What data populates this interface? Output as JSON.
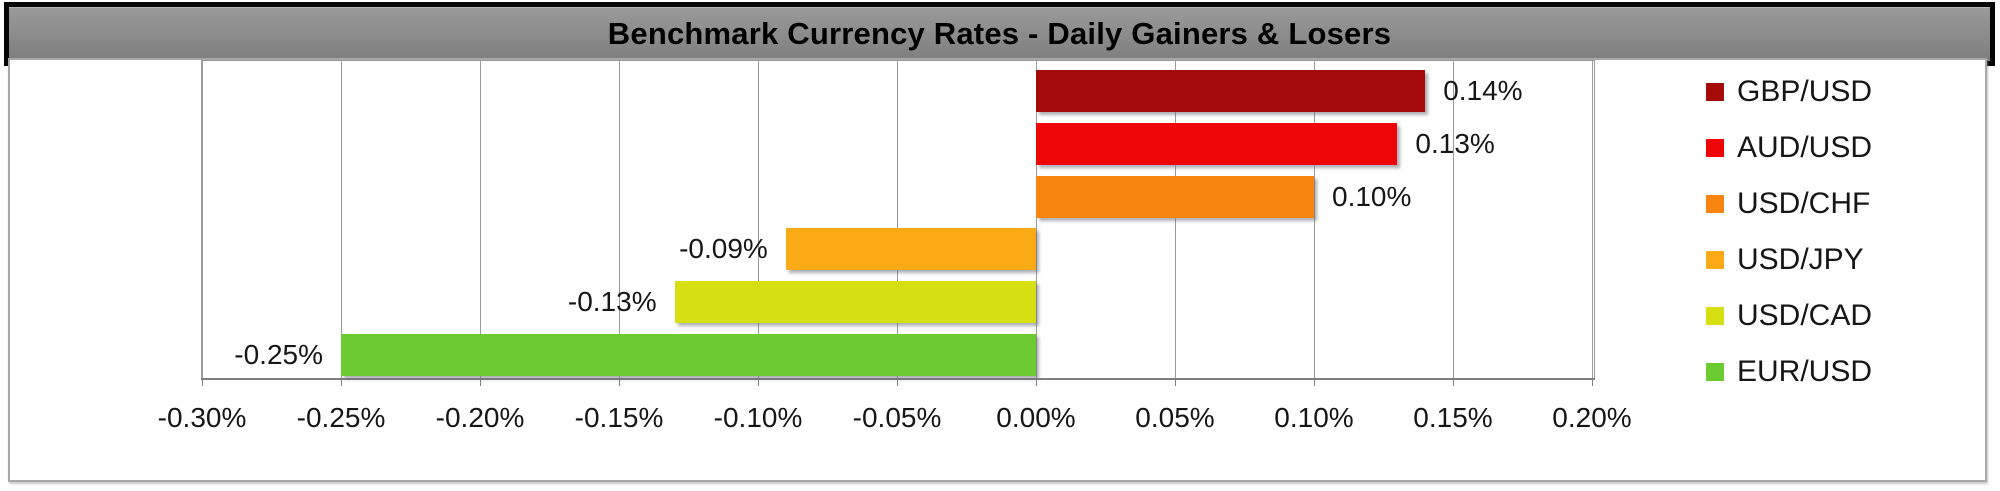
{
  "palette": {
    "title_background_top": "#9a9a9a",
    "title_background_bottom": "#7e7e7e",
    "title_border": "#060606",
    "title_text": "#000000",
    "chart_frame_border": "#a8a8a8",
    "chart_background": "#ffffff",
    "plot_border": "#9a9a9a",
    "gridline": "#9a9a9a",
    "axis_line": "#7f7f7f",
    "label_text": "#161616"
  },
  "chart_data": {
    "type": "bar",
    "orientation": "horizontal",
    "title": "Benchmark Currency Rates - Daily Gainers & Losers",
    "categories": [
      "GBP/USD",
      "AUD/USD",
      "USD/CHF",
      "USD/JPY",
      "USD/CAD",
      "EUR/USD"
    ],
    "values": [
      0.14,
      0.13,
      0.1,
      -0.09,
      -0.13,
      -0.25
    ],
    "series": [
      {
        "name": "GBP/USD",
        "value": 0.14,
        "label": "0.14%",
        "color": "#A50A0A"
      },
      {
        "name": "AUD/USD",
        "value": 0.13,
        "label": "0.13%",
        "color": "#EE0505"
      },
      {
        "name": "USD/CHF",
        "value": 0.1,
        "label": "0.10%",
        "color": "#F8860E"
      },
      {
        "name": "USD/JPY",
        "value": -0.09,
        "label": "-0.09%",
        "color": "#F9AA14"
      },
      {
        "name": "USD/CAD",
        "value": -0.13,
        "label": "-0.13%",
        "color": "#D6DF12"
      },
      {
        "name": "EUR/USD",
        "value": -0.25,
        "label": "-0.25%",
        "color": "#6CCB31"
      }
    ],
    "x_tick_labels": [
      "-0.30%",
      "-0.25%",
      "-0.20%",
      "-0.15%",
      "-0.10%",
      "-0.05%",
      "0.00%",
      "0.05%",
      "0.10%",
      "0.15%",
      "0.20%"
    ],
    "xlim_percent": [
      -0.3,
      0.2
    ],
    "x_tick_step_percent": 0.05,
    "xlabel": "",
    "ylabel": "",
    "grid": true,
    "data_label_position": "outside-end",
    "legend_position": "right"
  }
}
